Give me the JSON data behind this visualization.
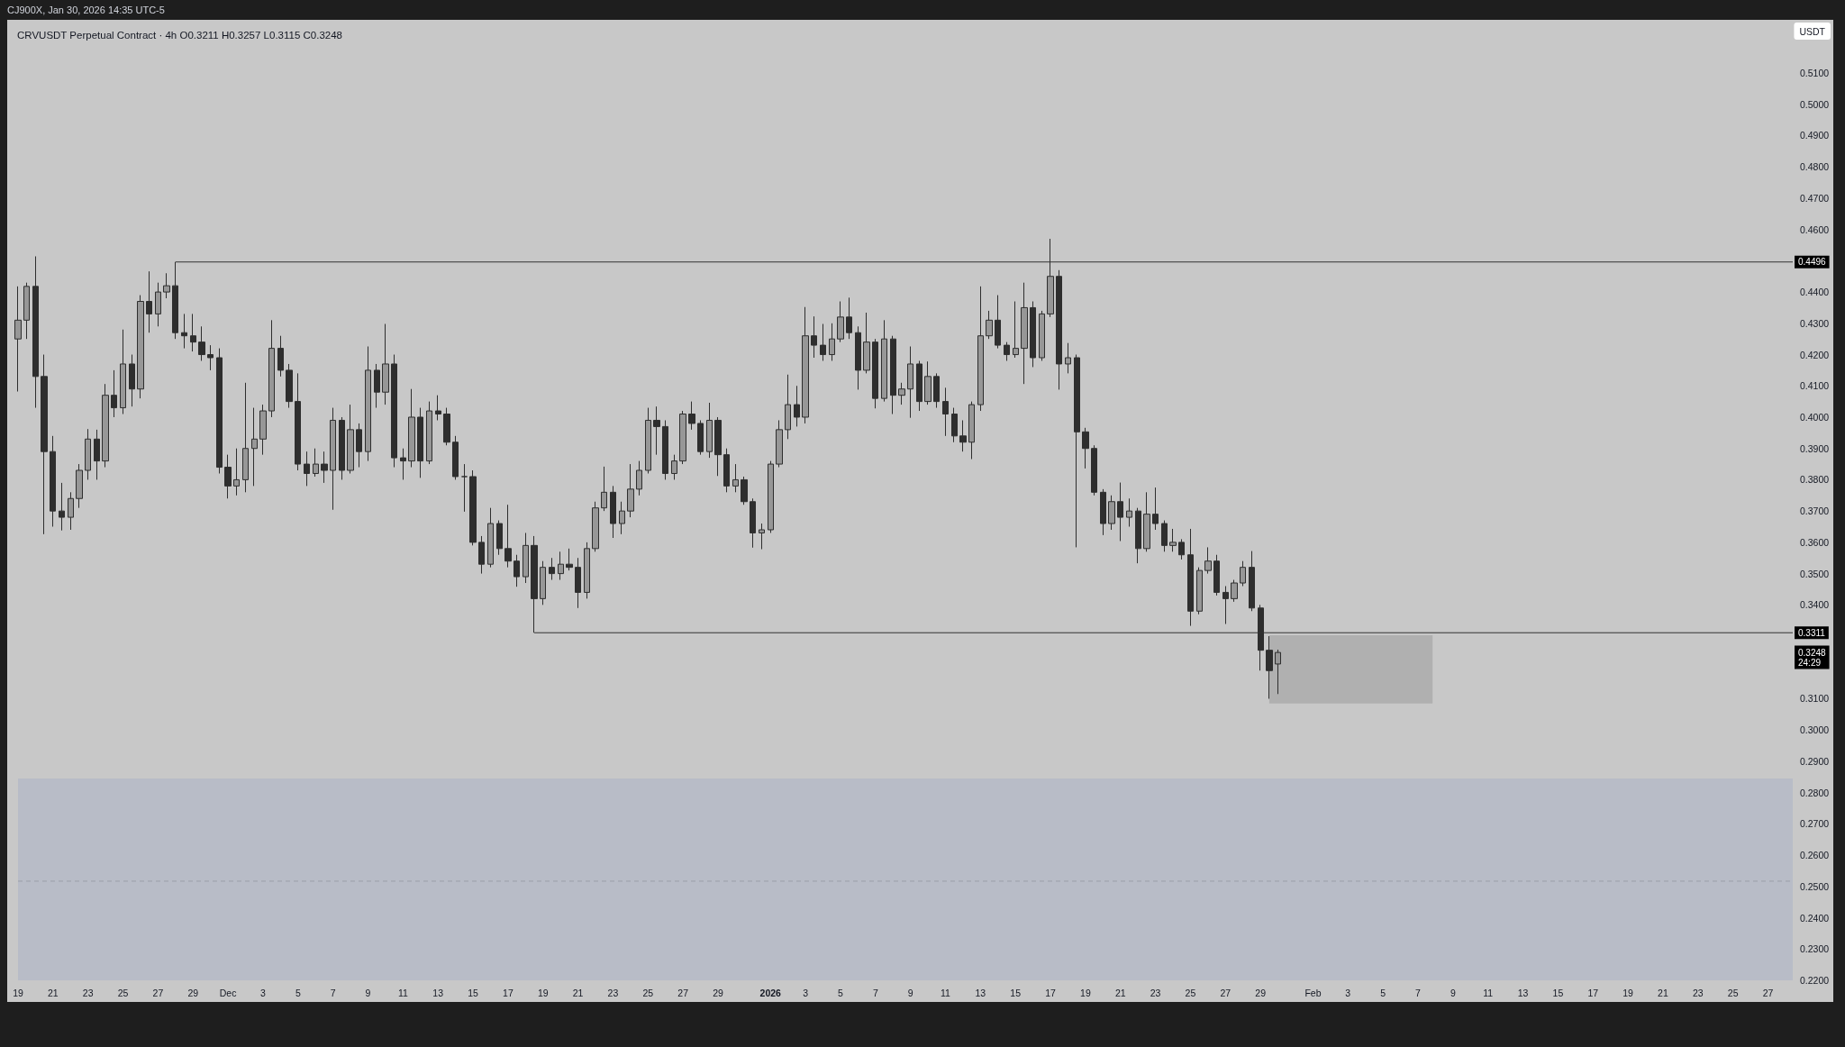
{
  "chart_data": {
    "type": "candlestick",
    "title": "CRVUSDT Perpetual Contract · 4h O0.3211 H0.3257 L0.3115 C0.3248",
    "ylabel": "USDT",
    "annotations": [
      "CJ900X, Jan 30, 2026 14:35 UTC-5",
      "0.3248\n24:29"
    ],
    "series": [
      {
        "color": "#2e2e2e",
        "x": [
          "2025-11-19T00:00",
          "2025-11-19T12:00",
          "2025-11-20T00:00",
          "2025-11-20T12:00",
          "2025-11-21T00:00",
          "2025-11-21T12:00",
          "2025-11-22T00:00",
          "2025-11-22T12:00",
          "2025-11-23T00:00",
          "2025-11-23T12:00",
          "2025-11-24T00:00",
          "2025-11-24T12:00",
          "2025-11-25T00:00",
          "2025-11-25T12:00",
          "2025-11-26T00:00",
          "2025-11-26T12:00",
          "2025-11-27T00:00",
          "2025-11-27T12:00",
          "2025-11-28T00:00",
          "2025-11-28T12:00",
          "2025-11-29T00:00",
          "2025-11-29T12:00",
          "2025-11-30T00:00",
          "2025-11-30T12:00",
          "2025-12-01T00:00",
          "2025-12-01T12:00",
          "2025-12-02T00:00",
          "2025-12-02T12:00",
          "2025-12-03T00:00",
          "2025-12-03T12:00",
          "2025-12-04T00:00",
          "2025-12-04T12:00",
          "2025-12-05T00:00",
          "2025-12-05T12:00",
          "2025-12-06T00:00",
          "2025-12-06T12:00",
          "2025-12-07T00:00",
          "2025-12-07T12:00",
          "2025-12-08T00:00",
          "2025-12-08T12:00",
          "2025-12-09T00:00",
          "2025-12-09T12:00",
          "2025-12-10T00:00",
          "2025-12-10T12:00",
          "2025-12-11T00:00",
          "2025-12-11T12:00",
          "2025-12-12T00:00",
          "2025-12-12T12:00",
          "2025-12-13T00:00",
          "2025-12-13T12:00",
          "2025-12-14T00:00",
          "2025-12-14T12:00",
          "2025-12-15T00:00",
          "2025-12-15T12:00",
          "2025-12-16T00:00",
          "2025-12-16T12:00",
          "2025-12-17T00:00",
          "2025-12-17T12:00",
          "2025-12-18T00:00",
          "2025-12-18T12:00",
          "2025-12-19T00:00",
          "2025-12-19T12:00",
          "2025-12-20T00:00",
          "2025-12-20T12:00",
          "2025-12-21T00:00",
          "2025-12-21T12:00",
          "2025-12-22T00:00",
          "2025-12-22T12:00",
          "2025-12-23T00:00",
          "2025-12-23T12:00",
          "2025-12-24T00:00",
          "2025-12-24T12:00",
          "2025-12-25T00:00",
          "2025-12-25T12:00",
          "2025-12-26T00:00",
          "2025-12-26T12:00",
          "2025-12-27T00:00",
          "2025-12-27T12:00",
          "2025-12-28T00:00",
          "2025-12-28T12:00",
          "2025-12-29T00:00",
          "2025-12-29T12:00",
          "2025-12-30T00:00",
          "2025-12-30T12:00",
          "2025-12-31T00:00",
          "2025-12-31T12:00",
          "2026-01-01T00:00",
          "2026-01-01T12:00",
          "2026-01-02T00:00",
          "2026-01-02T12:00",
          "2026-01-03T00:00",
          "2026-01-03T12:00",
          "2026-01-04T00:00",
          "2026-01-04T12:00",
          "2026-01-05T00:00",
          "2026-01-05T12:00",
          "2026-01-06T00:00",
          "2026-01-06T12:00",
          "2026-01-07T00:00",
          "2026-01-07T12:00",
          "2026-01-08T00:00",
          "2026-01-08T12:00",
          "2026-01-09T00:00",
          "2026-01-09T12:00",
          "2026-01-10T00:00",
          "2026-01-10T12:00",
          "2026-01-11T00:00",
          "2026-01-11T12:00",
          "2026-01-12T00:00",
          "2026-01-12T12:00",
          "2026-01-13T00:00",
          "2026-01-13T12:00",
          "2026-01-14T00:00",
          "2026-01-14T12:00",
          "2026-01-15T00:00",
          "2026-01-15T12:00",
          "2026-01-16T00:00",
          "2026-01-16T12:00",
          "2026-01-17T00:00",
          "2026-01-17T12:00",
          "2026-01-18T00:00",
          "2026-01-18T12:00",
          "2026-01-19T00:00",
          "2026-01-19T12:00",
          "2026-01-20T00:00",
          "2026-01-20T12:00",
          "2026-01-21T00:00",
          "2026-01-21T12:00",
          "2026-01-22T00:00",
          "2026-01-22T12:00",
          "2026-01-23T00:00",
          "2026-01-23T12:00",
          "2026-01-24T00:00",
          "2026-01-24T12:00",
          "2026-01-25T00:00",
          "2026-01-25T12:00",
          "2026-01-26T00:00",
          "2026-01-26T12:00",
          "2026-01-27T00:00",
          "2026-01-27T12:00",
          "2026-01-28T00:00",
          "2026-01-28T12:00",
          "2026-01-29T00:00",
          "2026-01-29T12:00",
          "2026-01-30T00:00"
        ],
        "ohlc": [
          [
            0.425,
            0.4418,
            0.4082,
            0.431
          ],
          [
            0.431,
            0.443,
            0.425,
            0.4418
          ],
          [
            0.4418,
            0.4514,
            0.403,
            0.413
          ],
          [
            0.413,
            0.42,
            0.3626,
            0.389
          ],
          [
            0.389,
            0.394,
            0.365,
            0.37
          ],
          [
            0.37,
            0.379,
            0.3638,
            0.368
          ],
          [
            0.368,
            0.376,
            0.364,
            0.374
          ],
          [
            0.374,
            0.385,
            0.371,
            0.383
          ],
          [
            0.383,
            0.3962,
            0.38,
            0.393
          ],
          [
            0.393,
            0.396,
            0.38,
            0.386
          ],
          [
            0.386,
            0.4106,
            0.384,
            0.407
          ],
          [
            0.407,
            0.415,
            0.4,
            0.403
          ],
          [
            0.403,
            0.428,
            0.401,
            0.417
          ],
          [
            0.417,
            0.42,
            0.4034,
            0.409
          ],
          [
            0.409,
            0.439,
            0.406,
            0.437
          ],
          [
            0.437,
            0.4466,
            0.427,
            0.433
          ],
          [
            0.433,
            0.443,
            0.429,
            0.44
          ],
          [
            0.44,
            0.446,
            0.438,
            0.442
          ],
          [
            0.442,
            0.4496,
            0.425,
            0.427
          ],
          [
            0.427,
            0.433,
            0.422,
            0.426
          ],
          [
            0.426,
            0.433,
            0.421,
            0.424
          ],
          [
            0.424,
            0.429,
            0.418,
            0.42
          ],
          [
            0.42,
            0.423,
            0.415,
            0.419
          ],
          [
            0.419,
            0.422,
            0.382,
            0.384
          ],
          [
            0.384,
            0.388,
            0.374,
            0.378
          ],
          [
            0.378,
            0.39,
            0.375,
            0.38
          ],
          [
            0.38,
            0.411,
            0.376,
            0.39
          ],
          [
            0.39,
            0.403,
            0.378,
            0.393
          ],
          [
            0.393,
            0.404,
            0.388,
            0.402
          ],
          [
            0.402,
            0.431,
            0.4,
            0.422
          ],
          [
            0.422,
            0.426,
            0.413,
            0.415
          ],
          [
            0.415,
            0.417,
            0.403,
            0.405
          ],
          [
            0.405,
            0.414,
            0.383,
            0.385
          ],
          [
            0.385,
            0.389,
            0.378,
            0.382
          ],
          [
            0.382,
            0.39,
            0.381,
            0.385
          ],
          [
            0.385,
            0.389,
            0.379,
            0.383
          ],
          [
            0.383,
            0.403,
            0.3704,
            0.399
          ],
          [
            0.399,
            0.4,
            0.38,
            0.383
          ],
          [
            0.383,
            0.404,
            0.382,
            0.396
          ],
          [
            0.396,
            0.398,
            0.384,
            0.389
          ],
          [
            0.389,
            0.4226,
            0.386,
            0.415
          ],
          [
            0.415,
            0.417,
            0.403,
            0.408
          ],
          [
            0.408,
            0.4298,
            0.404,
            0.417
          ],
          [
            0.417,
            0.42,
            0.384,
            0.387
          ],
          [
            0.387,
            0.39,
            0.38,
            0.386
          ],
          [
            0.386,
            0.409,
            0.384,
            0.4
          ],
          [
            0.4,
            0.403,
            0.3806,
            0.386
          ],
          [
            0.386,
            0.405,
            0.385,
            0.402
          ],
          [
            0.402,
            0.407,
            0.399,
            0.401
          ],
          [
            0.401,
            0.403,
            0.391,
            0.392
          ],
          [
            0.392,
            0.394,
            0.38,
            0.381
          ],
          [
            0.381,
            0.385,
            0.3698,
            0.381
          ],
          [
            0.381,
            0.383,
            0.359,
            0.36
          ],
          [
            0.36,
            0.362,
            0.35,
            0.353
          ],
          [
            0.353,
            0.371,
            0.352,
            0.366
          ],
          [
            0.366,
            0.367,
            0.356,
            0.358
          ],
          [
            0.358,
            0.372,
            0.352,
            0.354
          ],
          [
            0.354,
            0.356,
            0.3458,
            0.349
          ],
          [
            0.349,
            0.363,
            0.347,
            0.359
          ],
          [
            0.359,
            0.362,
            0.3311,
            0.342
          ],
          [
            0.342,
            0.354,
            0.34,
            0.352
          ],
          [
            0.352,
            0.355,
            0.348,
            0.35
          ],
          [
            0.35,
            0.357,
            0.348,
            0.353
          ],
          [
            0.353,
            0.358,
            0.351,
            0.352
          ],
          [
            0.352,
            0.355,
            0.339,
            0.344
          ],
          [
            0.344,
            0.36,
            0.342,
            0.358
          ],
          [
            0.358,
            0.373,
            0.357,
            0.371
          ],
          [
            0.371,
            0.3842,
            0.37,
            0.376
          ],
          [
            0.376,
            0.378,
            0.3614,
            0.366
          ],
          [
            0.366,
            0.373,
            0.3626,
            0.37
          ],
          [
            0.37,
            0.385,
            0.368,
            0.377
          ],
          [
            0.377,
            0.386,
            0.375,
            0.383
          ],
          [
            0.383,
            0.403,
            0.382,
            0.399
          ],
          [
            0.399,
            0.4034,
            0.388,
            0.397
          ],
          [
            0.397,
            0.399,
            0.38,
            0.382
          ],
          [
            0.382,
            0.388,
            0.38,
            0.386
          ],
          [
            0.386,
            0.402,
            0.385,
            0.401
          ],
          [
            0.401,
            0.405,
            0.396,
            0.398
          ],
          [
            0.398,
            0.399,
            0.388,
            0.389
          ],
          [
            0.389,
            0.4046,
            0.387,
            0.399
          ],
          [
            0.399,
            0.4,
            0.3812,
            0.388
          ],
          [
            0.388,
            0.39,
            0.376,
            0.378
          ],
          [
            0.378,
            0.385,
            0.376,
            0.38
          ],
          [
            0.38,
            0.381,
            0.372,
            0.373
          ],
          [
            0.373,
            0.374,
            0.3583,
            0.363
          ],
          [
            0.363,
            0.366,
            0.3578,
            0.364
          ],
          [
            0.364,
            0.386,
            0.363,
            0.385
          ],
          [
            0.385,
            0.399,
            0.384,
            0.396
          ],
          [
            0.396,
            0.4136,
            0.393,
            0.404
          ],
          [
            0.404,
            0.41,
            0.397,
            0.4
          ],
          [
            0.4,
            0.4352,
            0.398,
            0.426
          ],
          [
            0.426,
            0.4322,
            0.419,
            0.423
          ],
          [
            0.423,
            0.4298,
            0.418,
            0.42
          ],
          [
            0.42,
            0.43,
            0.418,
            0.425
          ],
          [
            0.425,
            0.437,
            0.424,
            0.432
          ],
          [
            0.432,
            0.4382,
            0.425,
            0.427
          ],
          [
            0.427,
            0.429,
            0.4088,
            0.415
          ],
          [
            0.415,
            0.4334,
            0.414,
            0.424
          ],
          [
            0.424,
            0.425,
            0.4028,
            0.406
          ],
          [
            0.406,
            0.431,
            0.405,
            0.425
          ],
          [
            0.425,
            0.426,
            0.401,
            0.407
          ],
          [
            0.407,
            0.411,
            0.404,
            0.409
          ],
          [
            0.409,
            0.4226,
            0.3998,
            0.417
          ],
          [
            0.417,
            0.418,
            0.402,
            0.405
          ],
          [
            0.405,
            0.4178,
            0.404,
            0.413
          ],
          [
            0.413,
            0.414,
            0.403,
            0.405
          ],
          [
            0.405,
            0.4094,
            0.394,
            0.401
          ],
          [
            0.401,
            0.403,
            0.392,
            0.394
          ],
          [
            0.394,
            0.399,
            0.389,
            0.392
          ],
          [
            0.392,
            0.405,
            0.3866,
            0.404
          ],
          [
            0.404,
            0.4418,
            0.402,
            0.426
          ],
          [
            0.426,
            0.434,
            0.425,
            0.431
          ],
          [
            0.431,
            0.439,
            0.422,
            0.423
          ],
          [
            0.423,
            0.424,
            0.418,
            0.42
          ],
          [
            0.42,
            0.437,
            0.419,
            0.422
          ],
          [
            0.422,
            0.443,
            0.4106,
            0.435
          ],
          [
            0.435,
            0.437,
            0.416,
            0.419
          ],
          [
            0.419,
            0.434,
            0.418,
            0.433
          ],
          [
            0.433,
            0.457,
            0.432,
            0.445
          ],
          [
            0.445,
            0.447,
            0.4088,
            0.417
          ],
          [
            0.417,
            0.4237,
            0.414,
            0.419
          ],
          [
            0.419,
            0.42,
            0.3584,
            0.3953
          ],
          [
            0.3953,
            0.3966,
            0.3836,
            0.39
          ],
          [
            0.39,
            0.391,
            0.375,
            0.376
          ],
          [
            0.376,
            0.377,
            0.3623,
            0.366
          ],
          [
            0.366,
            0.375,
            0.364,
            0.373
          ],
          [
            0.373,
            0.3791,
            0.3604,
            0.368
          ],
          [
            0.368,
            0.374,
            0.365,
            0.37
          ],
          [
            0.37,
            0.371,
            0.3533,
            0.358
          ],
          [
            0.358,
            0.376,
            0.357,
            0.369
          ],
          [
            0.369,
            0.3775,
            0.364,
            0.366
          ],
          [
            0.366,
            0.367,
            0.357,
            0.359
          ],
          [
            0.359,
            0.3643,
            0.357,
            0.36
          ],
          [
            0.36,
            0.361,
            0.3545,
            0.356
          ],
          [
            0.356,
            0.3643,
            0.3333,
            0.338
          ],
          [
            0.338,
            0.352,
            0.337,
            0.351
          ],
          [
            0.351,
            0.3584,
            0.35,
            0.354
          ],
          [
            0.354,
            0.356,
            0.343,
            0.344
          ],
          [
            0.344,
            0.346,
            0.3339,
            0.342
          ],
          [
            0.342,
            0.348,
            0.341,
            0.347
          ],
          [
            0.347,
            0.354,
            0.346,
            0.352
          ],
          [
            0.352,
            0.3572,
            0.338,
            0.339
          ],
          [
            0.339,
            0.34,
            0.319,
            0.3255
          ],
          [
            0.3255,
            0.33,
            0.31,
            0.319
          ],
          [
            0.3211,
            0.3257,
            0.3115,
            0.3248
          ]
        ]
      },
      {
        "type": "line",
        "color": "#333333",
        "x": [
          "2025-11-28T00:00",
          "2026-02-28T10:00"
        ],
        "values": [
          0.4496,
          0.4496
        ],
        "value_labels": [
          null,
          "0.4496"
        ]
      },
      {
        "type": "line",
        "color": "#333333",
        "x": [
          "2025-12-18T12:00",
          "2026-02-28T10:00"
        ],
        "values": [
          0.3311,
          0.3311
        ],
        "value_labels": [
          null,
          "0.3311"
        ]
      },
      {
        "type": "area",
        "color": "#b0b0b0",
        "x": [
          "2026-01-29T12:00",
          "2026-02-07T20:00"
        ],
        "values": [
          null,
          null
        ],
        "lower": [
          0.3085,
          0.3085
        ],
        "upper": [
          0.3303,
          0.3303
        ]
      }
    ],
    "bands": [
      {
        "axis": "y",
        "from": 0.22,
        "to": 0.2845,
        "color": "#b8bcc7"
      }
    ],
    "ref_lines": [
      {
        "axis": "y",
        "value": 0.2517,
        "color": "#9a9ea8",
        "line_style": "dashed"
      }
    ],
    "xlim": [
      "2025-11-19T00:00",
      "2026-02-28T10:00"
    ],
    "xticks": [
      {
        "value": "2025-11-19",
        "label": "19"
      },
      {
        "value": "2025-11-21",
        "label": "21"
      },
      {
        "value": "2025-11-23",
        "label": "23"
      },
      {
        "value": "2025-11-25",
        "label": "25"
      },
      {
        "value": "2025-11-27",
        "label": "27"
      },
      {
        "value": "2025-11-29",
        "label": "29"
      },
      {
        "value": "2025-12-01",
        "label": "Dec"
      },
      {
        "value": "2025-12-03",
        "label": "3"
      },
      {
        "value": "2025-12-05",
        "label": "5"
      },
      {
        "value": "2025-12-07",
        "label": "7"
      },
      {
        "value": "2025-12-09",
        "label": "9"
      },
      {
        "value": "2025-12-11",
        "label": "11"
      },
      {
        "value": "2025-12-13",
        "label": "13"
      },
      {
        "value": "2025-12-15",
        "label": "15"
      },
      {
        "value": "2025-12-17",
        "label": "17"
      },
      {
        "value": "2025-12-19",
        "label": "19"
      },
      {
        "value": "2025-12-21",
        "label": "21"
      },
      {
        "value": "2025-12-23",
        "label": "23"
      },
      {
        "value": "2025-12-25",
        "label": "25"
      },
      {
        "value": "2025-12-27",
        "label": "27"
      },
      {
        "value": "2025-12-29",
        "label": "29"
      },
      {
        "value": "2026-01-01",
        "label": "2026"
      },
      {
        "value": "2026-01-03",
        "label": "3"
      },
      {
        "value": "2026-01-05",
        "label": "5"
      },
      {
        "value": "2026-01-07",
        "label": "7"
      },
      {
        "value": "2026-01-09",
        "label": "9"
      },
      {
        "value": "2026-01-11",
        "label": "11"
      },
      {
        "value": "2026-01-13",
        "label": "13"
      },
      {
        "value": "2026-01-15",
        "label": "15"
      },
      {
        "value": "2026-01-17",
        "label": "17"
      },
      {
        "value": "2026-01-19",
        "label": "19"
      },
      {
        "value": "2026-01-21",
        "label": "21"
      },
      {
        "value": "2026-01-23",
        "label": "23"
      },
      {
        "value": "2026-01-25",
        "label": "25"
      },
      {
        "value": "2026-01-27",
        "label": "27"
      },
      {
        "value": "2026-01-29",
        "label": "29"
      },
      {
        "value": "2026-02-01",
        "label": "Feb"
      },
      {
        "value": "2026-02-03",
        "label": "3"
      },
      {
        "value": "2026-02-05",
        "label": "5"
      },
      {
        "value": "2026-02-07",
        "label": "7"
      },
      {
        "value": "2026-02-09",
        "label": "9"
      },
      {
        "value": "2026-02-11",
        "label": "11"
      },
      {
        "value": "2026-02-13",
        "label": "13"
      },
      {
        "value": "2026-02-15",
        "label": "15"
      },
      {
        "value": "2026-02-17",
        "label": "17"
      },
      {
        "value": "2026-02-19",
        "label": "19"
      },
      {
        "value": "2026-02-21",
        "label": "21"
      },
      {
        "value": "2026-02-23",
        "label": "23"
      },
      {
        "value": "2026-02-25",
        "label": "25"
      },
      {
        "value": "2026-02-27",
        "label": "27"
      }
    ],
    "ylim": [
      0.22,
      0.527
    ],
    "yticks": [
      {
        "value": 0.22,
        "label": "0.2200"
      },
      {
        "value": 0.23,
        "label": "0.2300"
      },
      {
        "value": 0.24,
        "label": "0.2400"
      },
      {
        "value": 0.25,
        "label": "0.2500"
      },
      {
        "value": 0.26,
        "label": "0.2600"
      },
      {
        "value": 0.27,
        "label": "0.2700"
      },
      {
        "value": 0.28,
        "label": "0.2800"
      },
      {
        "value": 0.29,
        "label": "0.2900"
      },
      {
        "value": 0.3,
        "label": "0.3000"
      },
      {
        "value": 0.31,
        "label": "0.3100"
      },
      {
        "value": 0.34,
        "label": "0.3400"
      },
      {
        "value": 0.35,
        "label": "0.3500"
      },
      {
        "value": 0.36,
        "label": "0.3600"
      },
      {
        "value": 0.37,
        "label": "0.3700"
      },
      {
        "value": 0.38,
        "label": "0.3800"
      },
      {
        "value": 0.39,
        "label": "0.3900"
      },
      {
        "value": 0.4,
        "label": "0.4000"
      },
      {
        "value": 0.41,
        "label": "0.4100"
      },
      {
        "value": 0.42,
        "label": "0.4200"
      },
      {
        "value": 0.43,
        "label": "0.4300"
      },
      {
        "value": 0.44,
        "label": "0.4400"
      },
      {
        "value": 0.46,
        "label": "0.4600"
      },
      {
        "value": 0.47,
        "label": "0.4700"
      },
      {
        "value": 0.48,
        "label": "0.4800"
      },
      {
        "value": 0.49,
        "label": "0.4900"
      },
      {
        "value": 0.5,
        "label": "0.5000"
      },
      {
        "value": 0.51,
        "label": "0.5100"
      }
    ]
  }
}
